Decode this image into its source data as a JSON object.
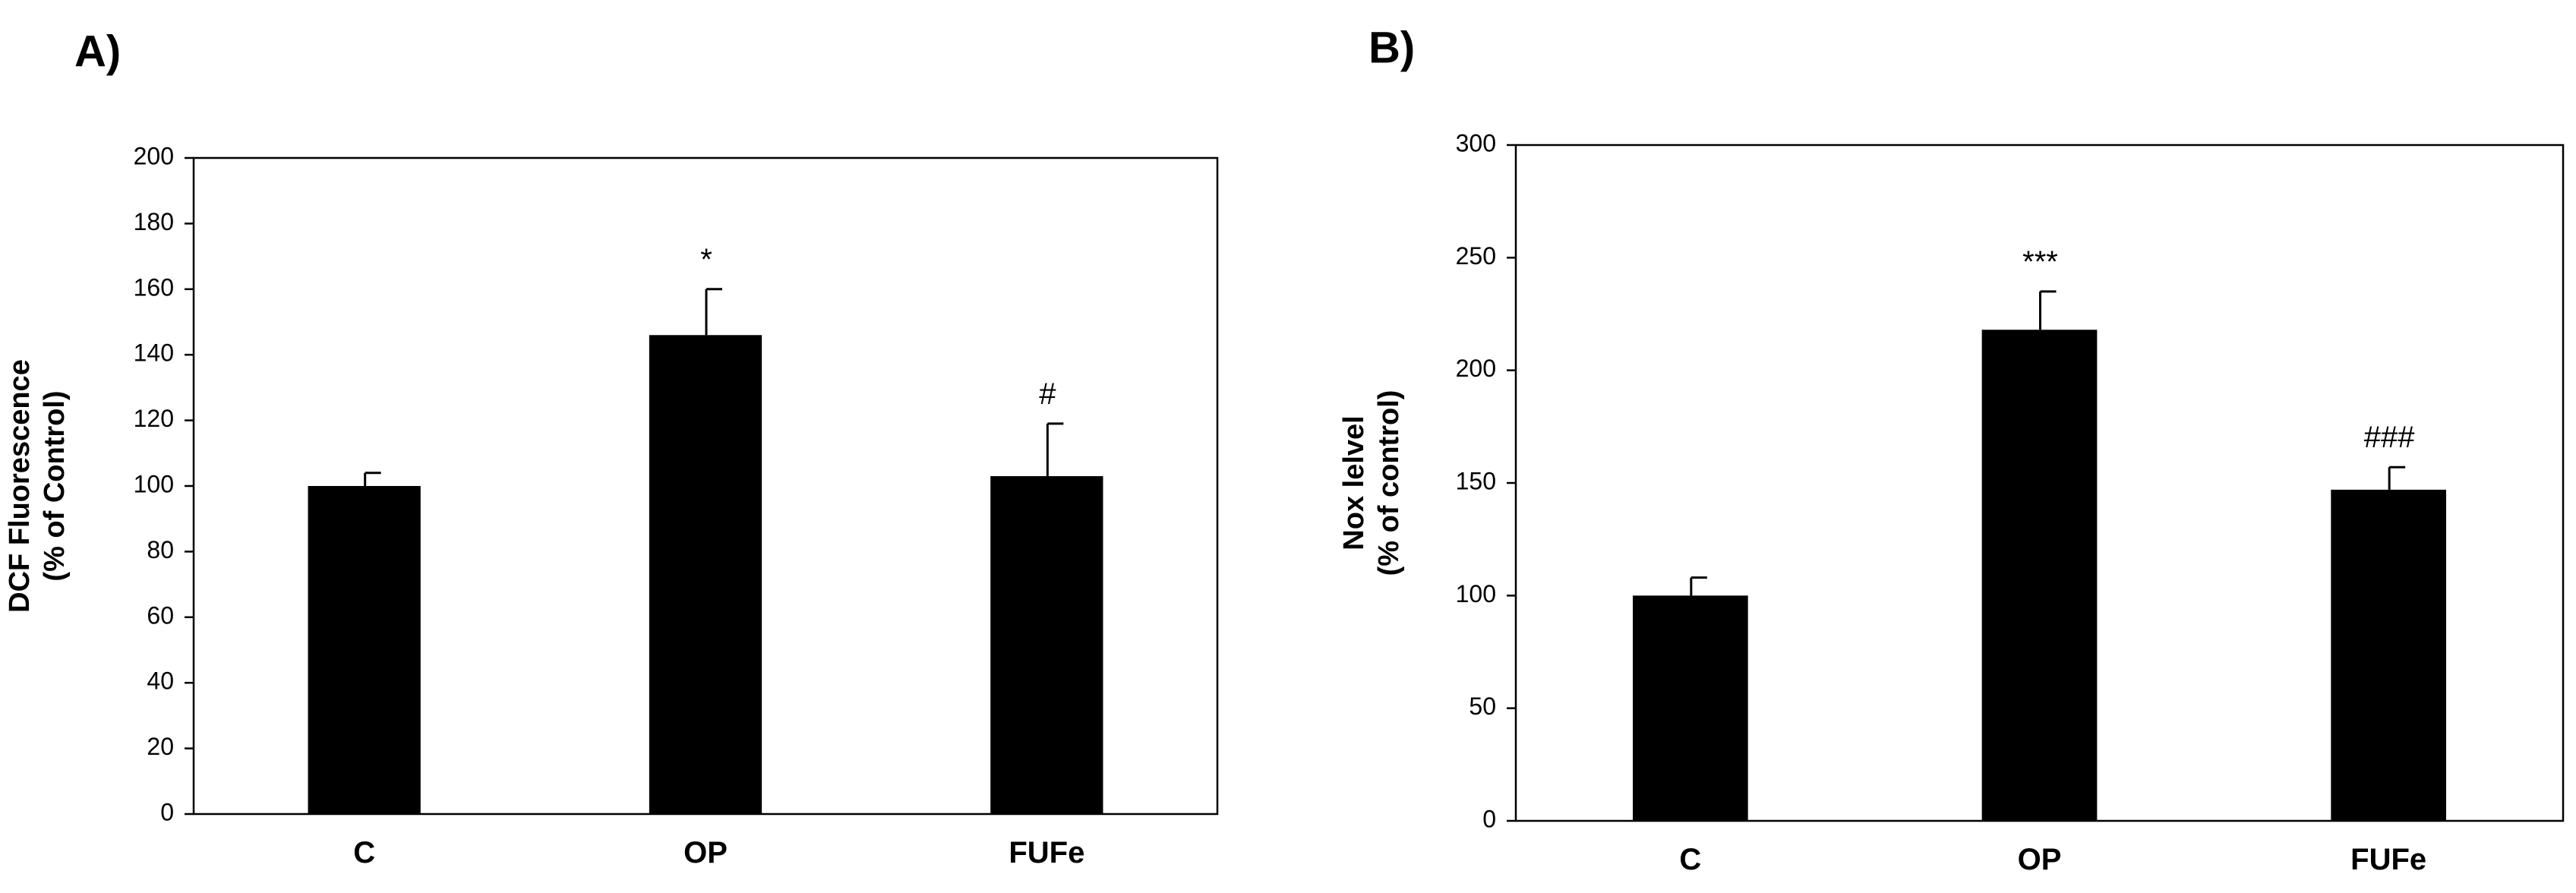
{
  "chart_data": [
    {
      "type": "bar",
      "panel_label": "A)",
      "categories": [
        "C",
        "OP",
        "FUFe"
      ],
      "values": [
        100,
        146,
        103
      ],
      "errors": [
        4,
        14,
        16
      ],
      "annotations": [
        "",
        "*",
        "#"
      ],
      "ylabel_lines": [
        "DCF Fluorescence",
        "(% of Control)"
      ],
      "xlabel": "",
      "ylim": [
        0,
        200
      ],
      "yticks": [
        0,
        20,
        40,
        60,
        80,
        100,
        120,
        140,
        160,
        180,
        200
      ],
      "bar_color": "#000000",
      "grid": false,
      "legend": "none"
    },
    {
      "type": "bar",
      "panel_label": "B)",
      "categories": [
        "C",
        "OP",
        "FUFe"
      ],
      "values": [
        100,
        218,
        147
      ],
      "errors": [
        8,
        17,
        10
      ],
      "annotations": [
        "",
        "***",
        "###"
      ],
      "ylabel_lines": [
        "Nox lelvel",
        "(% of control)"
      ],
      "xlabel": "",
      "ylim": [
        0,
        300
      ],
      "yticks": [
        0,
        50,
        100,
        150,
        200,
        250,
        300
      ],
      "bar_color": "#000000",
      "grid": false,
      "legend": "none"
    }
  ]
}
